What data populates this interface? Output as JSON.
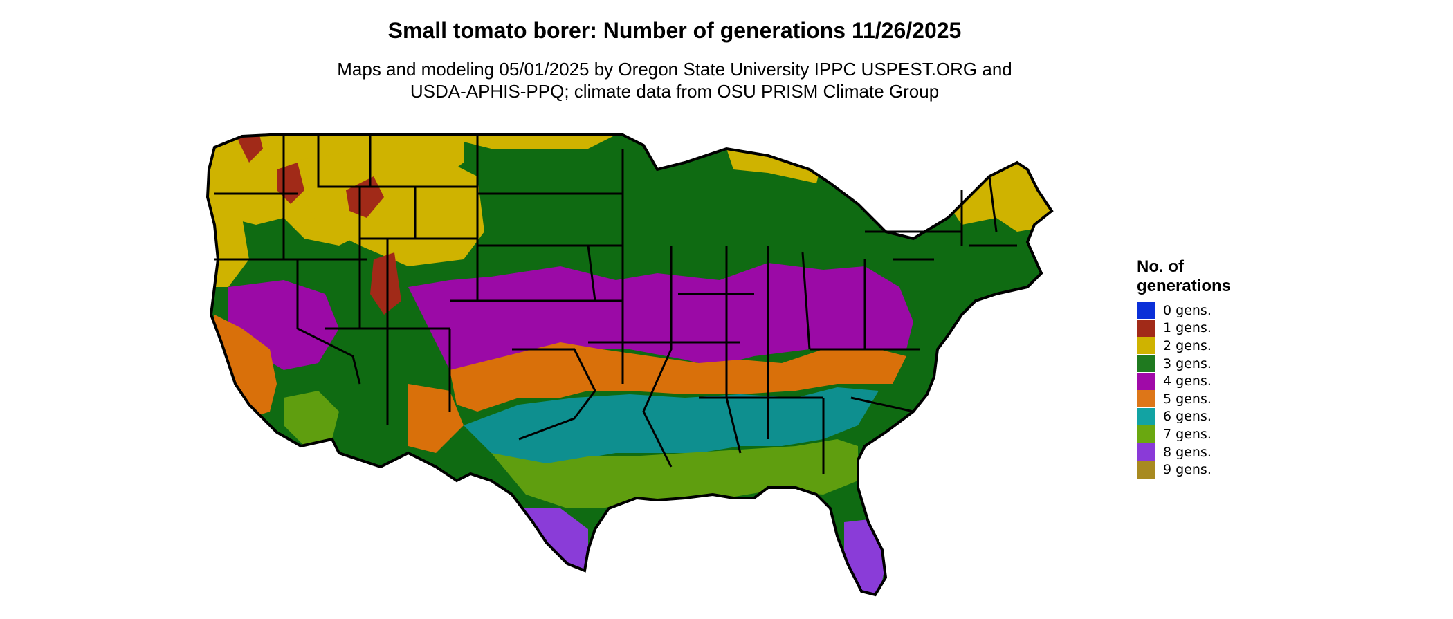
{
  "map": {
    "title": "Small tomato borer: Number of generations 11/26/2025",
    "subtitle_line1": "Maps and modeling 05/01/2025 by Oregon State University IPPC USPEST.ORG and",
    "subtitle_line2": "USDA-APHIS-PPQ; climate data from OSU PRISM Climate Group",
    "region": "Contiguous United States",
    "fill_colors": {
      "gen0": "#0a2fd8",
      "gen1": "#a12a18",
      "gen2": "#cfb300",
      "gen3": "#0f6b12",
      "gen4": "#9b0aa6",
      "gen5": "#d9700a",
      "gen6": "#0e8f8f",
      "gen7": "#5f9e0f",
      "gen8": "#8a3cd8",
      "gen9": "#a88a20"
    }
  },
  "legend": {
    "title": "No. of generations",
    "items": [
      {
        "label": "0 gens.",
        "color": "#0a2fd8"
      },
      {
        "label": "1 gens.",
        "color": "#a12a18"
      },
      {
        "label": "2 gens.",
        "color": "#cfb300"
      },
      {
        "label": "3 gens.",
        "color": "#1f7a1f"
      },
      {
        "label": "4 gens.",
        "color": "#a00aa8"
      },
      {
        "label": "5 gens.",
        "color": "#dd7618"
      },
      {
        "label": "6 gens.",
        "color": "#12a3a3"
      },
      {
        "label": "7 gens.",
        "color": "#6aa810"
      },
      {
        "label": "8 gens.",
        "color": "#8a3ad8"
      },
      {
        "label": "9 gens.",
        "color": "#a88a20"
      }
    ]
  }
}
